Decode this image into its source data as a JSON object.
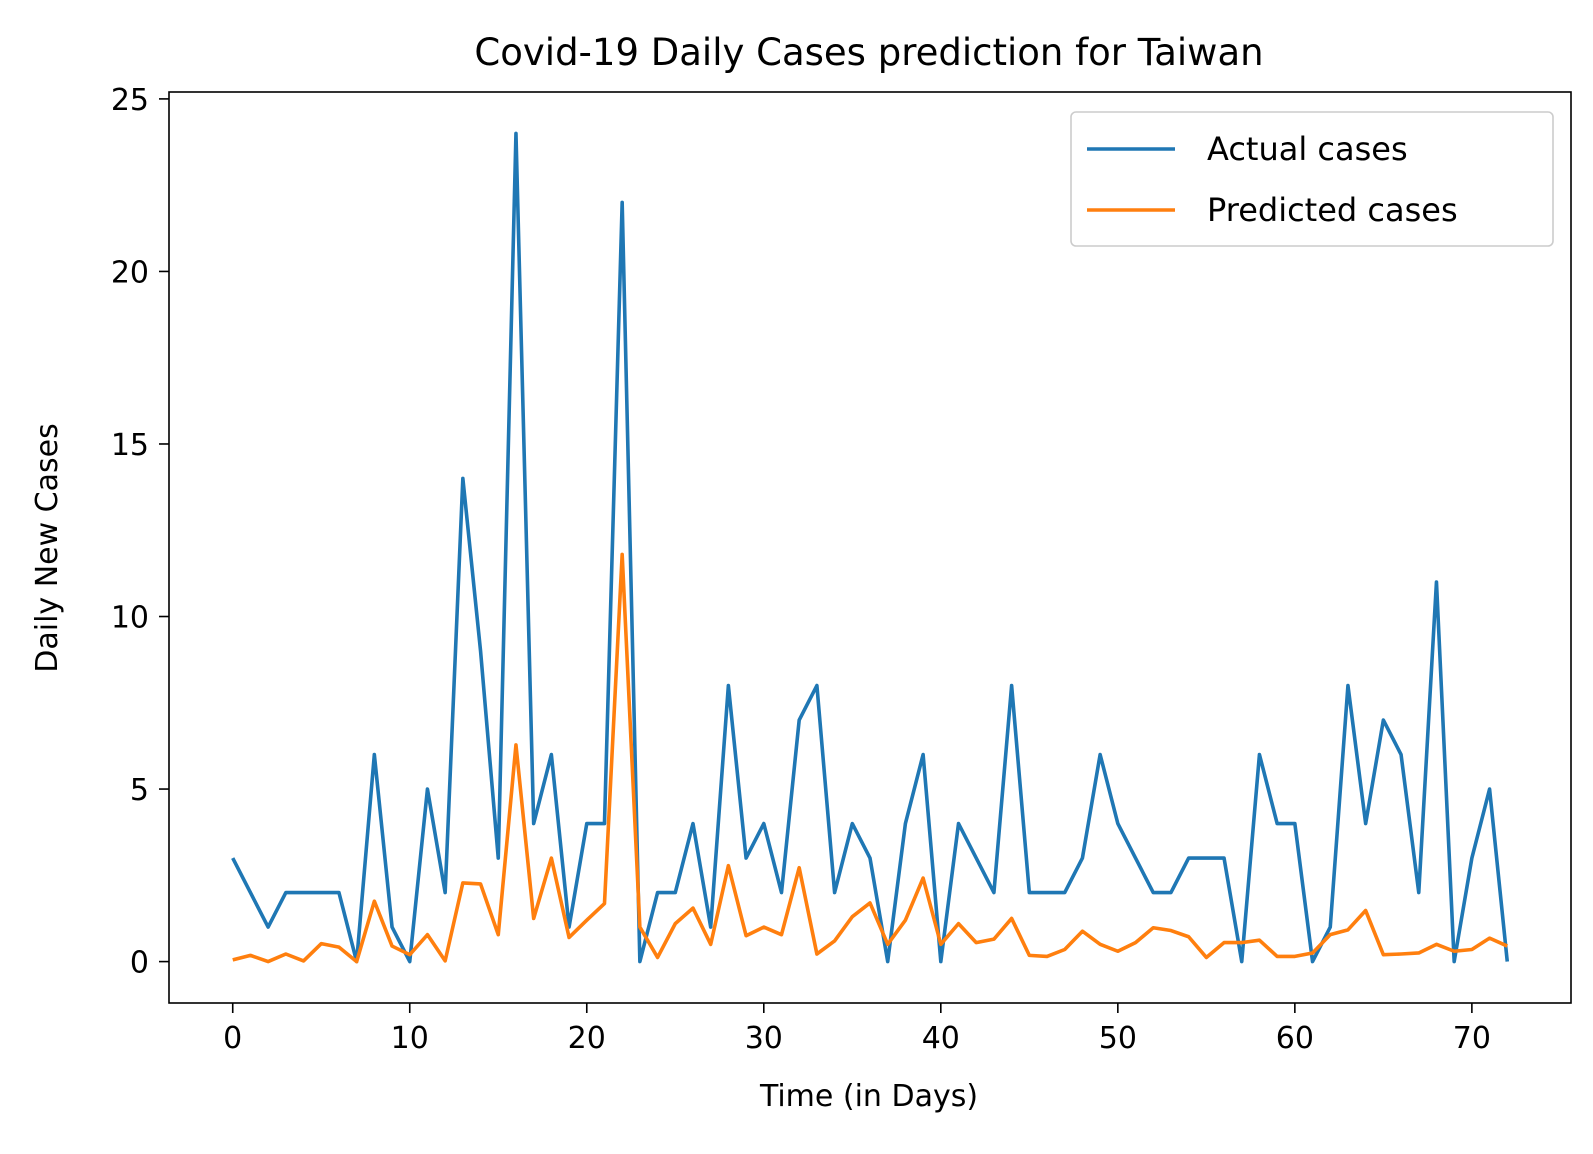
{
  "chart_data": {
    "type": "line",
    "title": "Covid-19 Daily Cases prediction for Taiwan",
    "xlabel": "Time (in Days)",
    "ylabel": "Daily New Cases",
    "xlim": [
      -3.6,
      75.6
    ],
    "ylim": [
      -1.2,
      25.2
    ],
    "xticks": [
      0,
      10,
      20,
      30,
      40,
      50,
      60,
      70
    ],
    "yticks": [
      0,
      5,
      10,
      15,
      20,
      25
    ],
    "grid": false,
    "legend_position": "top-right",
    "x": [
      0,
      1,
      2,
      3,
      4,
      5,
      6,
      7,
      8,
      9,
      10,
      11,
      12,
      13,
      14,
      15,
      16,
      17,
      18,
      19,
      20,
      21,
      22,
      23,
      24,
      25,
      26,
      27,
      28,
      29,
      30,
      31,
      32,
      33,
      34,
      35,
      36,
      37,
      38,
      39,
      40,
      41,
      42,
      43,
      44,
      45,
      46,
      47,
      48,
      49,
      50,
      51,
      52,
      53,
      54,
      55,
      56,
      57,
      58,
      59,
      60,
      61,
      62,
      63,
      64,
      65,
      66,
      67,
      68,
      69,
      70,
      71,
      72
    ],
    "series": [
      {
        "name": "Actual cases",
        "color": "#1f77b4",
        "values": [
          3,
          2,
          1,
          2,
          2,
          2,
          2,
          0,
          6,
          1,
          0,
          5,
          2,
          14,
          9,
          3,
          24,
          4,
          6,
          1,
          4,
          4,
          22,
          0,
          2,
          2,
          4,
          1,
          8,
          3,
          4,
          2,
          7,
          8,
          2,
          4,
          3,
          0,
          4,
          6,
          0,
          4,
          3,
          2,
          8,
          2,
          2,
          2,
          3,
          6,
          4,
          3,
          2,
          2,
          3,
          3,
          3,
          0,
          6,
          4,
          4,
          0,
          1,
          8,
          4,
          7,
          6,
          2,
          11,
          0,
          3,
          5,
          0
        ]
      },
      {
        "name": "Predicted cases",
        "color": "#ff7f0e",
        "values": [
          0.05,
          0.18,
          0.0,
          0.22,
          0.02,
          0.52,
          0.42,
          0.0,
          1.75,
          0.45,
          0.2,
          0.78,
          0.02,
          2.28,
          2.25,
          0.78,
          6.28,
          1.25,
          3.0,
          0.7,
          1.2,
          1.68,
          11.8,
          1.0,
          0.12,
          1.1,
          1.55,
          0.5,
          2.78,
          0.75,
          1.0,
          0.78,
          2.72,
          0.22,
          0.6,
          1.3,
          1.7,
          0.5,
          1.2,
          2.42,
          0.5,
          1.1,
          0.55,
          0.65,
          1.25,
          0.18,
          0.15,
          0.35,
          0.88,
          0.5,
          0.3,
          0.55,
          0.98,
          0.9,
          0.72,
          0.12,
          0.55,
          0.55,
          0.62,
          0.15,
          0.15,
          0.25,
          0.78,
          0.92,
          1.48,
          0.2,
          0.22,
          0.25,
          0.5,
          0.3,
          0.35,
          0.68,
          0.45
        ]
      }
    ]
  },
  "colors": {
    "axes": "#000000",
    "background": "#ffffff",
    "legend_border": "#cccccc"
  }
}
